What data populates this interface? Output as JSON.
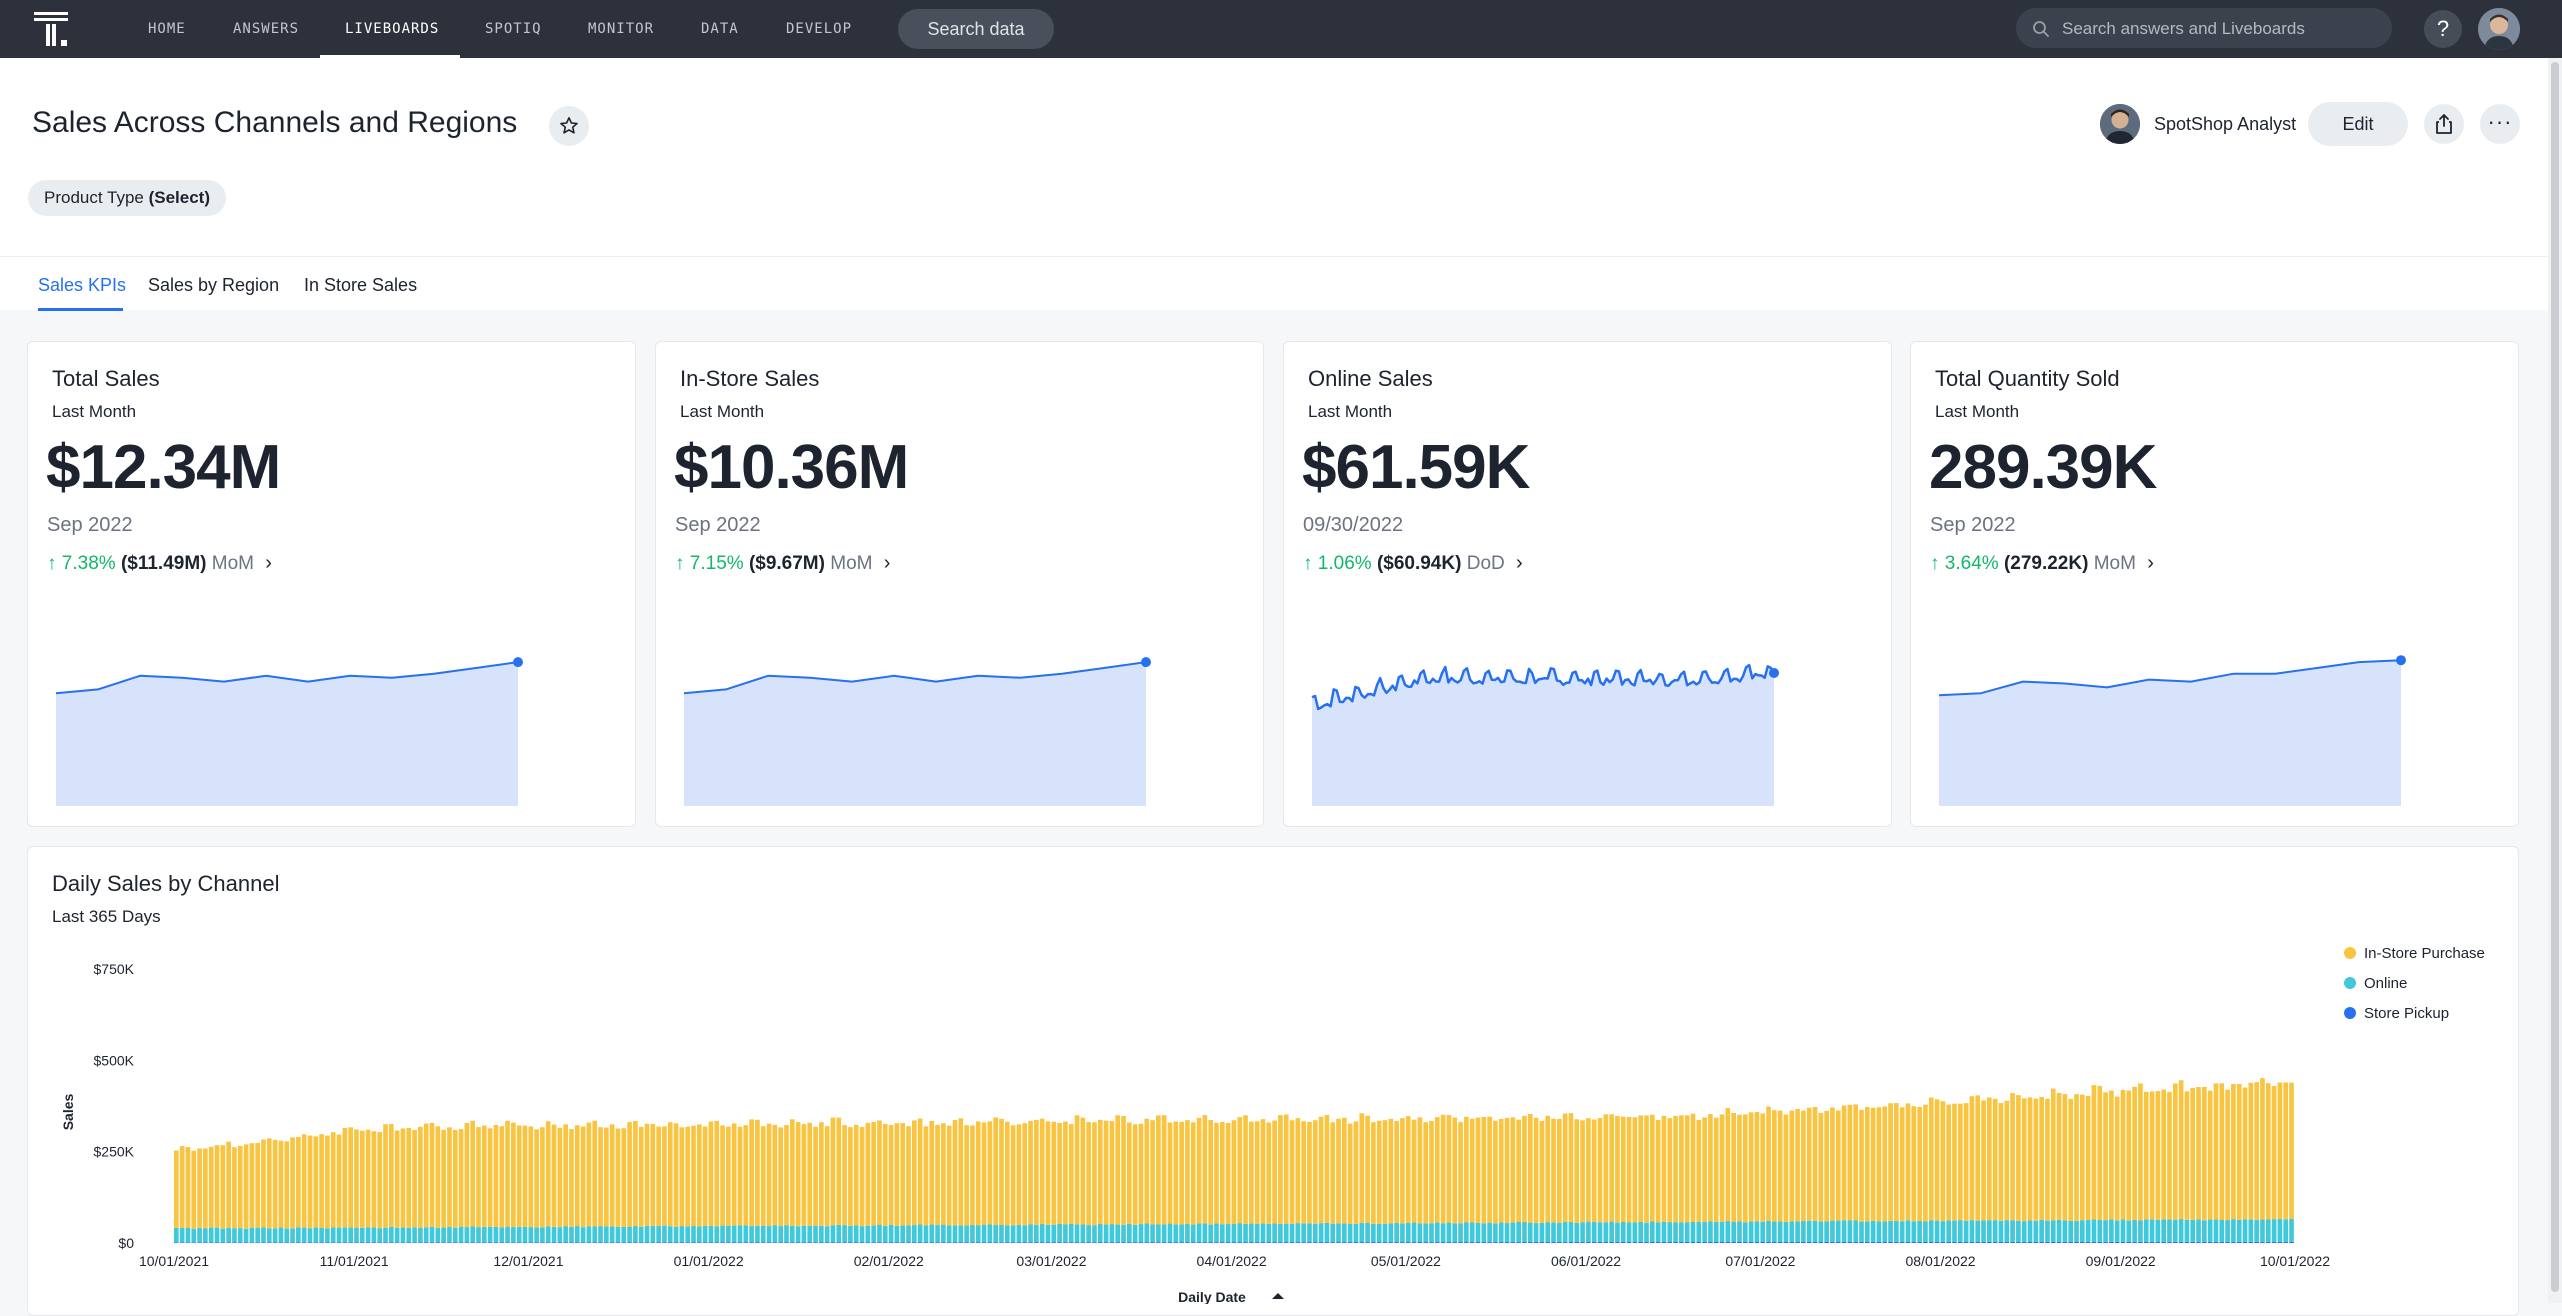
{
  "nav": {
    "items": [
      "HOME",
      "ANSWERS",
      "LIVEBOARDS",
      "SPOTIQ",
      "MONITOR",
      "DATA",
      "DEVELOP"
    ],
    "active": "LIVEBOARDS",
    "search_data_label": "Search data",
    "global_search_placeholder": "Search answers and Liveboards",
    "help_label": "?"
  },
  "header": {
    "title": "Sales Across Channels and Regions",
    "author": "SpotShop Analyst",
    "edit_label": "Edit",
    "more_label": "···",
    "filter": {
      "label": "Product Type",
      "value": "(Select)"
    }
  },
  "tabs": [
    "Sales KPIs",
    "Sales by Region",
    "In Store Sales"
  ],
  "active_tab": "Sales KPIs",
  "colors": {
    "accent": "#2770ef",
    "positive": "#12b76a",
    "in_store": "#f9c440",
    "online": "#40c8db",
    "store_pickup": "#2770ef",
    "spark_fill": "#d6e3fb"
  },
  "kpis": [
    {
      "title": "Total Sales",
      "subtitle": "Last Month",
      "value": "$12.34M",
      "period": "Sep 2022",
      "change_pct": "7.38%",
      "change_prev": "($11.49M)",
      "change_cmp": "MoM",
      "trend": [
        0.58,
        0.6,
        0.67,
        0.66,
        0.64,
        0.67,
        0.64,
        0.67,
        0.66,
        0.68,
        0.71,
        0.74
      ]
    },
    {
      "title": "In-Store Sales",
      "subtitle": "Last Month",
      "value": "$10.36M",
      "period": "Sep 2022",
      "change_pct": "7.15%",
      "change_prev": "($9.67M)",
      "change_cmp": "MoM",
      "trend": [
        0.58,
        0.6,
        0.67,
        0.66,
        0.64,
        0.67,
        0.64,
        0.67,
        0.66,
        0.68,
        0.71,
        0.74
      ]
    },
    {
      "title": "Online Sales",
      "subtitle": "Last Month",
      "value": "$61.59K",
      "period": "09/30/2022",
      "change_pct": "1.06%",
      "change_prev": "($60.94K)",
      "change_cmp": "DoD",
      "trend_daily": true
    },
    {
      "title": "Total Quantity Sold",
      "subtitle": "Last Month",
      "value": "289.39K",
      "period": "Sep 2022",
      "change_pct": "3.64%",
      "change_prev": "(279.22K)",
      "change_cmp": "MoM",
      "trend": [
        0.57,
        0.58,
        0.64,
        0.63,
        0.61,
        0.65,
        0.64,
        0.68,
        0.68,
        0.71,
        0.74,
        0.75
      ]
    }
  ],
  "daily_chart": {
    "title": "Daily Sales by Channel",
    "subtitle": "Last 365 Days",
    "legend": [
      "In-Store Purchase",
      "Online",
      "Store Pickup"
    ]
  },
  "chart_data": {
    "type": "bar",
    "stacked": true,
    "title": "Daily Sales by Channel",
    "subtitle": "Last 365 Days",
    "xlabel": "Daily Date",
    "ylabel": "Sales",
    "ylim": [
      0,
      750000
    ],
    "y_ticks": [
      "$0",
      "$250K",
      "$500K",
      "$750K"
    ],
    "y_tick_values": [
      0,
      250000,
      500000,
      750000
    ],
    "x_ticks": [
      "10/01/2021",
      "11/01/2021",
      "12/01/2021",
      "01/01/2022",
      "02/01/2022",
      "03/01/2022",
      "04/01/2022",
      "05/01/2022",
      "06/01/2022",
      "07/01/2022",
      "08/01/2022",
      "09/01/2022",
      "10/01/2022"
    ],
    "legend_position": "top-right",
    "x_range": [
      "10/01/2021",
      "09/30/2022"
    ],
    "series": [
      {
        "name": "In-Store Purchase",
        "start_value": 210000,
        "end_value": 395000
      },
      {
        "name": "Online",
        "start_value": 38000,
        "end_value": 62000
      },
      {
        "name": "Store Pickup",
        "start_value": 2000,
        "end_value": 3000
      }
    ]
  }
}
